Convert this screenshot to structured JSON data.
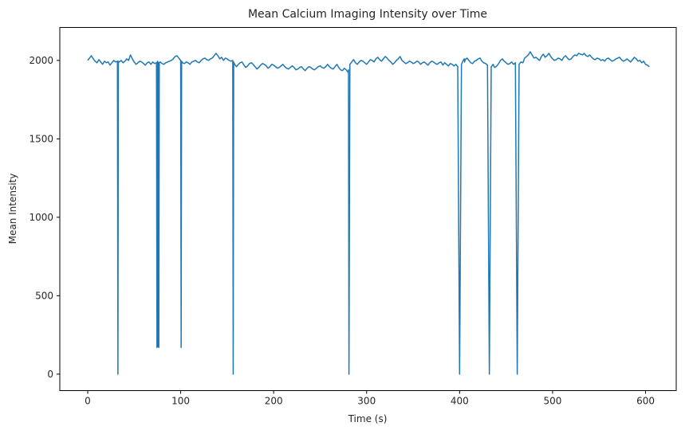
{
  "chart_data": {
    "type": "line",
    "title": "Mean Calcium Imaging Intensity over Time",
    "xlabel": "Time (s)",
    "ylabel": "Mean Intensity",
    "xlim": [
      -30,
      633
    ],
    "ylim": [
      -105,
      2210
    ],
    "xticks": [
      0,
      100,
      200,
      300,
      400,
      500,
      600
    ],
    "yticks": [
      0,
      500,
      1000,
      1500,
      2000
    ],
    "grid": false,
    "legend": "none",
    "color": "#1f77b4",
    "series": [
      {
        "x": [
          0,
          2,
          4,
          6,
          8,
          10,
          12,
          14,
          16,
          18,
          20,
          22,
          24,
          26,
          28,
          30,
          32,
          32.5,
          33,
          34,
          36,
          38,
          40,
          42,
          44,
          46,
          48,
          50,
          52,
          54,
          56,
          58,
          60,
          62,
          64,
          66,
          68,
          70,
          72,
          74,
          74.5,
          75,
          75.5,
          76,
          76.5,
          77,
          78,
          80,
          82,
          84,
          86,
          88,
          90,
          92,
          94,
          96,
          98,
          100,
          100.5,
          101,
          102,
          104,
          106,
          108,
          110,
          112,
          114,
          116,
          118,
          120,
          122,
          124,
          126,
          128,
          130,
          132,
          134,
          136,
          138,
          140,
          142,
          144,
          146,
          148,
          150,
          152,
          154,
          156,
          156.5,
          157,
          158,
          160,
          162,
          164,
          166,
          168,
          170,
          172,
          174,
          176,
          178,
          180,
          182,
          184,
          186,
          188,
          190,
          192,
          194,
          196,
          198,
          200,
          202,
          204,
          206,
          208,
          210,
          212,
          214,
          216,
          218,
          220,
          222,
          224,
          226,
          228,
          230,
          232,
          234,
          236,
          238,
          240,
          242,
          244,
          246,
          248,
          250,
          252,
          254,
          256,
          258,
          260,
          262,
          264,
          266,
          268,
          270,
          272,
          274,
          276,
          278,
          280,
          280.5,
          281,
          282,
          284,
          286,
          288,
          290,
          292,
          294,
          296,
          298,
          300,
          302,
          304,
          306,
          308,
          310,
          312,
          314,
          316,
          318,
          320,
          322,
          324,
          326,
          328,
          330,
          332,
          334,
          336,
          338,
          340,
          342,
          344,
          346,
          348,
          350,
          352,
          354,
          356,
          358,
          360,
          362,
          364,
          366,
          368,
          370,
          372,
          374,
          376,
          378,
          380,
          382,
          384,
          386,
          388,
          390,
          392,
          394,
          396,
          398,
          400,
          402,
          404,
          405,
          405.5,
          406,
          408,
          410,
          412,
          414,
          416,
          418,
          420,
          422,
          424,
          426,
          428,
          430,
          432,
          434,
          436,
          436.5,
          437,
          438,
          440,
          442,
          444,
          446,
          448,
          450,
          452,
          454,
          456,
          458,
          460,
          462,
          464,
          466,
          468,
          468.5,
          469,
          470,
          472,
          474,
          476,
          478,
          480,
          482,
          484,
          486,
          488,
          490,
          492,
          494,
          496,
          498,
          500,
          502,
          504,
          506,
          508,
          510,
          512,
          514,
          516,
          518,
          520,
          522,
          524,
          526,
          528,
          530,
          532,
          534,
          536,
          538,
          540,
          542,
          544,
          546,
          548,
          550,
          552,
          554,
          556,
          558,
          560,
          562,
          564,
          566,
          568,
          570,
          572,
          574,
          576,
          578,
          580,
          582,
          584,
          586,
          588,
          590,
          592,
          594,
          596,
          598,
          600,
          602,
          604
        ],
        "y": [
          2000,
          2015,
          2030,
          2010,
          1995,
          1985,
          2005,
          1990,
          1975,
          1995,
          1985,
          1990,
          1970,
          1985,
          2000,
          1990,
          1995,
          0,
          1995,
          1990,
          2000,
          1985,
          1995,
          2010,
          2000,
          2035,
          2010,
          1990,
          1975,
          1985,
          1995,
          1990,
          1980,
          1970,
          1985,
          1990,
          1975,
          1990,
          1980,
          1985,
          170,
          1995,
          175,
          1990,
          170,
          1985,
          1990,
          1980,
          1975,
          1985,
          1990,
          1995,
          2000,
          2010,
          2025,
          2030,
          2015,
          2000,
          170,
          1995,
          1985,
          1980,
          1990,
          1985,
          1975,
          1990,
          1995,
          2000,
          1990,
          1985,
          2000,
          2010,
          2015,
          2005,
          2000,
          2010,
          2015,
          2030,
          2045,
          2030,
          2010,
          2020,
          2000,
          2015,
          2010,
          2000,
          1995,
          2000,
          0,
          1990,
          1975,
          1960,
          1975,
          1985,
          1990,
          1970,
          1955,
          1965,
          1980,
          1985,
          1975,
          1960,
          1945,
          1955,
          1970,
          1980,
          1975,
          1965,
          1950,
          1960,
          1975,
          1970,
          1960,
          1950,
          1955,
          1965,
          1975,
          1960,
          1950,
          1945,
          1955,
          1965,
          1955,
          1940,
          1945,
          1955,
          1960,
          1945,
          1935,
          1950,
          1960,
          1955,
          1945,
          1940,
          1950,
          1960,
          1965,
          1955,
          1950,
          1960,
          1975,
          1960,
          1950,
          1945,
          1960,
          1975,
          1955,
          1940,
          1935,
          1950,
          1940,
          1925,
          1940,
          0,
          1975,
          1990,
          2005,
          1985,
          1975,
          1990,
          2000,
          1995,
          1985,
          1975,
          1990,
          2005,
          2000,
          1990,
          2010,
          2020,
          2005,
          1995,
          2010,
          2025,
          2015,
          2000,
          1990,
          1975,
          1985,
          2000,
          2010,
          2025,
          2000,
          1990,
          1980,
          1985,
          1995,
          1990,
          1980,
          1985,
          1995,
          1990,
          1975,
          1985,
          1990,
          1980,
          1970,
          1985,
          1995,
          1990,
          1980,
          1975,
          1985,
          1990,
          1970,
          1985,
          1975,
          1965,
          1980,
          1975,
          1965,
          1975,
          1960,
          0,
          1975,
          2000,
          2010,
          1990,
          2005,
          2015,
          2000,
          1985,
          1980,
          1995,
          2000,
          2010,
          2015,
          1995,
          1985,
          1980,
          1970,
          0,
          1960,
          1975,
          1970,
          1960,
          1955,
          1965,
          1980,
          2000,
          2010,
          1995,
          1985,
          1975,
          1980,
          1990,
          1975,
          1985,
          0,
          1975,
          1990,
          1985,
          1990,
          2000,
          2015,
          2025,
          2035,
          2055,
          2035,
          2015,
          2020,
          2010,
          2000,
          2025,
          2040,
          2020,
          2030,
          2045,
          2025,
          2010,
          2000,
          2005,
          2015,
          2010,
          2000,
          2020,
          2030,
          2015,
          2005,
          2010,
          2025,
          2035,
          2030,
          2045,
          2040,
          2035,
          2045,
          2030,
          2025,
          2035,
          2020,
          2010,
          2005,
          2015,
          2010,
          2000,
          2005,
          1995,
          2010,
          2015,
          2005,
          1995,
          2000,
          2010,
          2015,
          2020,
          2005,
          1995,
          2000,
          2010,
          2000,
          1990,
          2005,
          2020,
          2010,
          1995,
          2000,
          1985,
          1995,
          1975,
          1970,
          1960
        ]
      }
    ]
  }
}
